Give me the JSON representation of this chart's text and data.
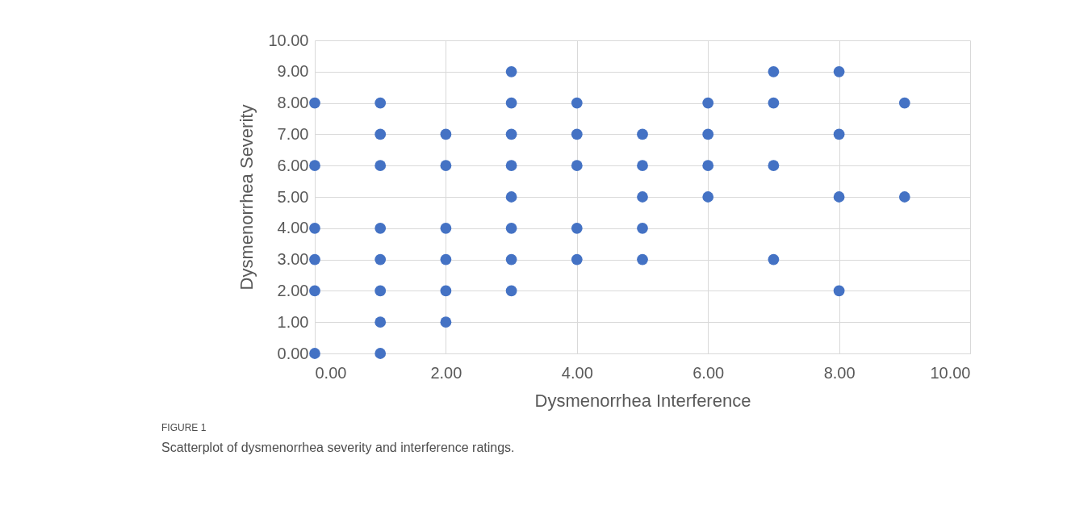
{
  "chart_data": {
    "type": "scatter",
    "xlabel": "Dysmenorrhea Interference",
    "ylabel": "Dysmenorrhea Severity",
    "x": [
      0,
      0,
      0,
      0,
      0,
      0,
      1,
      1,
      1,
      1,
      1,
      1,
      1,
      1,
      2,
      2,
      2,
      2,
      2,
      2,
      3,
      3,
      3,
      3,
      3,
      3,
      3,
      3,
      4,
      4,
      4,
      4,
      4,
      5,
      5,
      5,
      5,
      5,
      6,
      6,
      6,
      6,
      7,
      7,
      7,
      7,
      8,
      8,
      8,
      8,
      9,
      9
    ],
    "series": [
      {
        "color": "#4472c4",
        "values": [
          8,
          6,
          4,
          3,
          2,
          0,
          8,
          7,
          6,
          4,
          3,
          2,
          1,
          0,
          7,
          6,
          4,
          3,
          2,
          1,
          9,
          8,
          7,
          6,
          5,
          4,
          3,
          2,
          8,
          7,
          6,
          4,
          3,
          7,
          6,
          5,
          4,
          3,
          8,
          7,
          6,
          5,
          9,
          8,
          6,
          3,
          9,
          7,
          5,
          2,
          8,
          5
        ]
      }
    ],
    "xlim": [
      0,
      10
    ],
    "ylim": [
      0,
      10
    ],
    "xticks": [
      {
        "value": 0,
        "label": "0.00"
      },
      {
        "value": 2,
        "label": "2.00"
      },
      {
        "value": 4,
        "label": "4.00"
      },
      {
        "value": 6,
        "label": "6.00"
      },
      {
        "value": 8,
        "label": "8.00"
      },
      {
        "value": 10,
        "label": "10.00"
      }
    ],
    "yticks": [
      {
        "value": 0,
        "label": "0.00"
      },
      {
        "value": 1,
        "label": "1.00"
      },
      {
        "value": 2,
        "label": "2.00"
      },
      {
        "value": 3,
        "label": "3.00"
      },
      {
        "value": 4,
        "label": "4.00"
      },
      {
        "value": 5,
        "label": "5.00"
      },
      {
        "value": 6,
        "label": "6.00"
      },
      {
        "value": 7,
        "label": "7.00"
      },
      {
        "value": 8,
        "label": "8.00"
      },
      {
        "value": 9,
        "label": "9.00"
      },
      {
        "value": 10,
        "label": "10.00"
      }
    ],
    "grid": true,
    "marker": "circle",
    "annotations": [
      "FIGURE 1",
      "Scatterplot of dysmenorrhea severity and interference ratings."
    ]
  }
}
